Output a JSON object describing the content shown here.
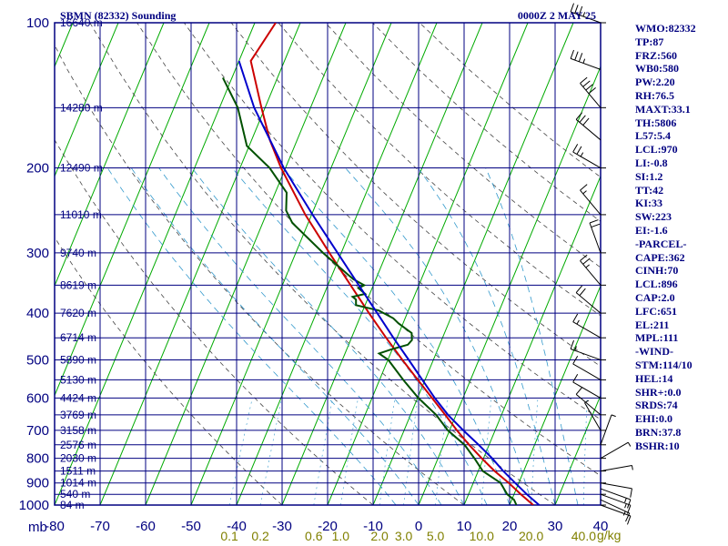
{
  "chart_data": {
    "type": "line",
    "title": "SBMN (82332) Sounding",
    "time_label": "0000Z  2 MAY 25",
    "xlabel": "",
    "ylabel": "",
    "pressure_unit": "mb",
    "mixing_unit": "g/kg",
    "xlim": [
      -80,
      40
    ],
    "ylim": [
      1000,
      100
    ],
    "pressure_ticks": [
      "100",
      "200",
      "300",
      "400",
      "500",
      "600",
      "700",
      "800",
      "900",
      "1000"
    ],
    "temperature_ticks": [
      "-80",
      "-70",
      "-60",
      "-50",
      "-40",
      "-30",
      "-20",
      "-10",
      "0",
      "10",
      "20",
      "30",
      "40"
    ],
    "mixing_ratio_labels": [
      "0.1",
      "0.2",
      "0.6",
      "1.0",
      "2.0",
      "3.0",
      "5.0",
      "10.0",
      "20.0",
      "40.0"
    ],
    "height_labels": [
      {
        "p": 100,
        "text": "16640 m"
      },
      {
        "p": 150,
        "text": "14280 m"
      },
      {
        "p": 200,
        "text": "12490 m"
      },
      {
        "p": 250,
        "text": "11010 m"
      },
      {
        "p": 300,
        "text": "9740 m"
      },
      {
        "p": 350,
        "text": "8619 m"
      },
      {
        "p": 400,
        "text": "7620 m"
      },
      {
        "p": 450,
        "text": "6714 m"
      },
      {
        "p": 500,
        "text": "5890 m"
      },
      {
        "p": 550,
        "text": "5130 m"
      },
      {
        "p": 600,
        "text": "4424 m"
      },
      {
        "p": 650,
        "text": "3769 m"
      },
      {
        "p": 700,
        "text": "3158 m"
      },
      {
        "p": 750,
        "text": "2576 m"
      },
      {
        "p": 800,
        "text": "2030 m"
      },
      {
        "p": 850,
        "text": "1511 m"
      },
      {
        "p": 900,
        "text": "1014 m"
      },
      {
        "p": 950,
        "text": "540 m"
      },
      {
        "p": 1000,
        "text": "84 m"
      }
    ],
    "series": [
      {
        "key": "temperature",
        "color": "#cc0000",
        "points": [
          [
            1000,
            25.2
          ],
          [
            950,
            21.5
          ],
          [
            900,
            17.8
          ],
          [
            850,
            13.6
          ],
          [
            800,
            9.6
          ],
          [
            750,
            5.6
          ],
          [
            700,
            1.6
          ],
          [
            650,
            -2.4
          ],
          [
            600,
            -6.8
          ],
          [
            550,
            -11.6
          ],
          [
            500,
            -16.8
          ],
          [
            450,
            -22.4
          ],
          [
            400,
            -28.4
          ],
          [
            350,
            -35.0
          ],
          [
            300,
            -42.6
          ],
          [
            250,
            -51.4
          ],
          [
            200,
            -61.0
          ],
          [
            175,
            -66.0
          ],
          [
            150,
            -70.8
          ],
          [
            120,
            -77.4
          ],
          [
            100,
            -75.4
          ]
        ]
      },
      {
        "key": "dewpoint",
        "color": "#005000",
        "points": [
          [
            1000,
            21.5
          ],
          [
            975,
            20.5
          ],
          [
            950,
            18.5
          ],
          [
            900,
            16.0
          ],
          [
            850,
            11.0
          ],
          [
            800,
            8.0
          ],
          [
            750,
            4.6
          ],
          [
            700,
            -0.4
          ],
          [
            650,
            -4.4
          ],
          [
            600,
            -9.8
          ],
          [
            550,
            -14.8
          ],
          [
            500,
            -19.9
          ],
          [
            485,
            -22.5
          ],
          [
            475,
            -20.0
          ],
          [
            465,
            -17.0
          ],
          [
            455,
            -16.5
          ],
          [
            440,
            -17.2
          ],
          [
            420,
            -21.0
          ],
          [
            410,
            -22.6
          ],
          [
            395,
            -26.5
          ],
          [
            385,
            -32.0
          ],
          [
            375,
            -32.5
          ],
          [
            370,
            -33.5
          ],
          [
            365,
            -31.0
          ],
          [
            355,
            -33.0
          ],
          [
            350,
            -32.0
          ],
          [
            340,
            -35.0
          ],
          [
            300,
            -44.0
          ],
          [
            260,
            -53.5
          ],
          [
            245,
            -56.0
          ],
          [
            225,
            -57.5
          ],
          [
            200,
            -63.5
          ],
          [
            180,
            -70.5
          ],
          [
            150,
            -76.0
          ],
          [
            130,
            -82.0
          ]
        ]
      },
      {
        "key": "parcel",
        "color": "#0000cc",
        "points": [
          [
            1000,
            26.5
          ],
          [
            950,
            22.8
          ],
          [
            900,
            19.2
          ],
          [
            850,
            15.5
          ],
          [
            800,
            11.9
          ],
          [
            750,
            7.7
          ],
          [
            700,
            3.0
          ],
          [
            650,
            -1.8
          ],
          [
            600,
            -6.2
          ],
          [
            550,
            -10.6
          ],
          [
            500,
            -15.4
          ],
          [
            450,
            -20.8
          ],
          [
            400,
            -26.6
          ],
          [
            350,
            -33.2
          ],
          [
            300,
            -40.8
          ],
          [
            250,
            -49.8
          ],
          [
            200,
            -60.4
          ],
          [
            150,
            -72.4
          ],
          [
            120,
            -80.0
          ]
        ]
      }
    ],
    "wind_barbs": [
      {
        "p": 1000,
        "dir": 110,
        "spd": 10
      },
      {
        "p": 975,
        "dir": 115,
        "spd": 15
      },
      {
        "p": 950,
        "dir": 110,
        "spd": 15
      },
      {
        "p": 925,
        "dir": 110,
        "spd": 15
      },
      {
        "p": 900,
        "dir": 100,
        "spd": 10
      },
      {
        "p": 850,
        "dir": 80,
        "spd": 5
      },
      {
        "p": 800,
        "dir": 60,
        "spd": 5
      },
      {
        "p": 750,
        "dir": 20,
        "spd": 5
      },
      {
        "p": 700,
        "dir": 330,
        "spd": 5
      },
      {
        "p": 650,
        "dir": 310,
        "spd": 10
      },
      {
        "p": 600,
        "dir": 300,
        "spd": 10
      },
      {
        "p": 550,
        "dir": 300,
        "spd": 10
      },
      {
        "p": 500,
        "dir": 290,
        "spd": 15
      },
      {
        "p": 450,
        "dir": 300,
        "spd": 15
      },
      {
        "p": 400,
        "dir": 310,
        "spd": 20
      },
      {
        "p": 350,
        "dir": 320,
        "spd": 25
      },
      {
        "p": 300,
        "dir": 340,
        "spd": 20
      },
      {
        "p": 250,
        "dir": 320,
        "spd": 15
      },
      {
        "p": 200,
        "dir": 300,
        "spd": 25
      },
      {
        "p": 175,
        "dir": 310,
        "spd": 30
      },
      {
        "p": 150,
        "dir": 320,
        "spd": 40
      },
      {
        "p": 125,
        "dir": 290,
        "spd": 35
      },
      {
        "p": 100,
        "dir": 290,
        "spd": 35
      }
    ]
  },
  "indices": [
    "WMO:82332",
    "TP:87",
    "FRZ:560",
    "WB0:580",
    "PW:2.20",
    "RH:76.5",
    "MAXT:33.1",
    "TH:5806",
    "L57:5.4",
    "LCL:970",
    "LI:-0.8",
    "SI:1.2",
    "TT:42",
    "KI:33",
    "SW:223",
    "EI:-1.6",
    "-PARCEL-",
    "CAPE:362",
    "CINH:70",
    "LCL:896",
    "CAP:2.0",
    "LFC:651",
    "EL:211",
    "MPL:111",
    "-WIND-",
    "STM:114/10",
    "HEL:14",
    "SHR+:0.0",
    "SRDS:74",
    "EHI:0.0",
    "BRN:37.8",
    "BSHR:10"
  ],
  "colors": {
    "frame": "#000080",
    "isotherm": "#00aa00",
    "dry_adiabat": "#444444",
    "moist_adiabat": "#3399cc",
    "mixing_label": "#808000"
  }
}
